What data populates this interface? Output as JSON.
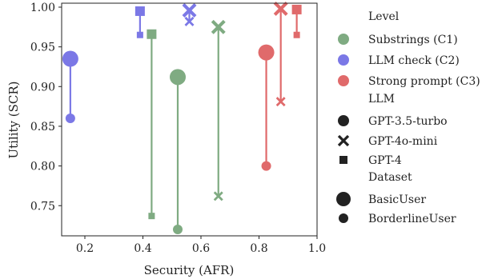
{
  "chart_data": {
    "type": "scatter",
    "xlabel": "Security (AFR)",
    "ylabel": "Utility (SCR)",
    "xlim": [
      0.12,
      1.0
    ],
    "ylim": [
      0.712,
      1.005
    ],
    "xticks": [
      0.2,
      0.4,
      0.6,
      0.8,
      1.0
    ],
    "xtick_labels": [
      "0.2",
      "0.4",
      "0.6",
      "0.8",
      "1.0"
    ],
    "yticks": [
      0.75,
      0.8,
      0.85,
      0.9,
      0.95,
      1.0
    ],
    "ytick_labels": [
      "0.75",
      "0.80",
      "0.85",
      "0.90",
      "0.95",
      "1.00"
    ],
    "grid": false,
    "legend_placement": "outside-right",
    "levels": [
      {
        "name": "Substrings (C1)",
        "color": "#7fab82"
      },
      {
        "name": "LLM check (C2)",
        "color": "#7b78e6"
      },
      {
        "name": "Strong prompt (C3)",
        "color": "#e06a6b"
      }
    ],
    "llms": [
      {
        "name": "GPT-3.5-turbo",
        "marker": "circle"
      },
      {
        "name": "GPT-4o-mini",
        "marker": "x"
      },
      {
        "name": "GPT-4",
        "marker": "square"
      }
    ],
    "datasets": [
      {
        "name": "BasicUser",
        "size": "large"
      },
      {
        "name": "BorderlineUser",
        "size": "small"
      }
    ],
    "pairs": [
      {
        "level": "Substrings (C1)",
        "llm": "GPT-3.5-turbo",
        "BasicUser": [
          0.52,
          0.912
        ],
        "BorderlineUser": [
          0.52,
          0.72
        ]
      },
      {
        "level": "Substrings (C1)",
        "llm": "GPT-4o-mini",
        "BasicUser": [
          0.66,
          0.975
        ],
        "BorderlineUser": [
          0.66,
          0.762
        ]
      },
      {
        "level": "Substrings (C1)",
        "llm": "GPT-4",
        "BasicUser": [
          0.43,
          0.966
        ],
        "BorderlineUser": [
          0.43,
          0.737
        ]
      },
      {
        "level": "LLM check (C2)",
        "llm": "GPT-3.5-turbo",
        "BasicUser": [
          0.15,
          0.935
        ],
        "BorderlineUser": [
          0.15,
          0.86
        ]
      },
      {
        "level": "LLM check (C2)",
        "llm": "GPT-4o-mini",
        "BasicUser": [
          0.56,
          0.996
        ],
        "BorderlineUser": [
          0.56,
          0.982
        ]
      },
      {
        "level": "LLM check (C2)",
        "llm": "GPT-4",
        "BasicUser": [
          0.39,
          0.995
        ],
        "BorderlineUser": [
          0.39,
          0.965
        ]
      },
      {
        "level": "Strong prompt (C3)",
        "llm": "GPT-3.5-turbo",
        "BasicUser": [
          0.825,
          0.943
        ],
        "BorderlineUser": [
          0.825,
          0.8
        ]
      },
      {
        "level": "Strong prompt (C3)",
        "llm": "GPT-4o-mini",
        "BasicUser": [
          0.875,
          0.998
        ],
        "BorderlineUser": [
          0.875,
          0.881
        ]
      },
      {
        "level": "Strong prompt (C3)",
        "llm": "GPT-4",
        "BasicUser": [
          0.93,
          0.997
        ],
        "BorderlineUser": [
          0.93,
          0.965
        ]
      }
    ]
  },
  "legend": {
    "level_title": "Level",
    "llm_title": "LLM",
    "dataset_title": "Dataset"
  }
}
